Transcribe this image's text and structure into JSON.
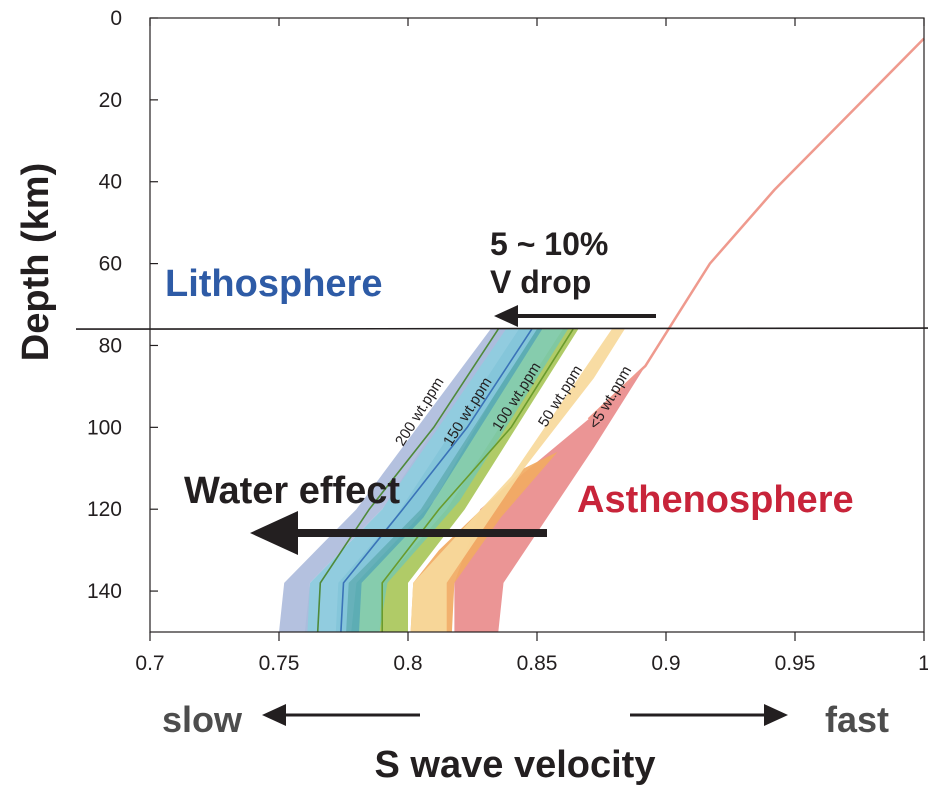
{
  "chart_data": {
    "type": "area",
    "xlabel": "S wave velocity",
    "ylabel": "Depth (km)",
    "xlim": [
      0.7,
      1.0
    ],
    "ylim": [
      0,
      150
    ],
    "y_inverted": true,
    "x_ticks": [
      0.7,
      0.75,
      0.8,
      0.85,
      0.9,
      0.95,
      1.0
    ],
    "x_tick_labels": [
      "0.7",
      "0.75",
      "0.8",
      "0.85",
      "0.9",
      "0.95",
      "1"
    ],
    "y_ticks": [
      0,
      20,
      40,
      60,
      80,
      100,
      120,
      140
    ],
    "y_tick_labels": [
      "0",
      "20",
      "40",
      "60",
      "80",
      "100",
      "120",
      "140"
    ],
    "grid": false,
    "lithosphere_boundary_depth": 76,
    "reference_curve": {
      "color": "#ef9a8e",
      "points": [
        [
          1.0,
          5
        ],
        [
          0.942,
          42
        ],
        [
          0.917,
          60
        ],
        [
          0.904,
          73
        ],
        [
          0.892,
          85
        ],
        [
          0.87,
          98
        ]
      ]
    },
    "bands": [
      {
        "label": "<5 wt.ppm",
        "color": "#e98c8c",
        "left": [
          [
            0.87,
            98
          ],
          [
            0.828,
            120
          ],
          [
            0.818,
            138
          ],
          [
            0.818,
            150
          ]
        ],
        "right": [
          [
            0.892,
            85
          ],
          [
            0.872,
            105
          ],
          [
            0.837,
            138
          ],
          [
            0.835,
            150
          ]
        ]
      },
      {
        "label": "50 wt.ppm",
        "color": "#f1aa62",
        "left": [
          [
            0.845,
            110
          ],
          [
            0.812,
            130
          ],
          [
            0.802,
            138
          ],
          [
            0.801,
            150
          ]
        ],
        "right": [
          [
            0.858,
            106
          ],
          [
            0.836,
            122
          ],
          [
            0.818,
            138
          ],
          [
            0.817,
            150
          ]
        ]
      },
      {
        "label": "",
        "color": "#f7d99b",
        "left": [
          [
            0.879,
            76
          ],
          [
            0.84,
            112
          ],
          [
            0.802,
            138
          ],
          [
            0.801,
            150
          ]
        ],
        "right": [
          [
            0.884,
            76
          ],
          [
            0.872,
            88
          ],
          [
            0.845,
            110
          ],
          [
            0.815,
            138
          ],
          [
            0.815,
            150
          ]
        ]
      },
      {
        "label": "100 wt.ppm",
        "color": "#a9c75a",
        "left": [
          [
            0.86,
            76
          ],
          [
            0.815,
            120
          ],
          [
            0.79,
            138
          ],
          [
            0.789,
            150
          ]
        ],
        "right": [
          [
            0.866,
            76
          ],
          [
            0.822,
            120
          ],
          [
            0.8,
            138
          ],
          [
            0.8,
            150
          ]
        ]
      },
      {
        "label": "",
        "color": "#7cc8a6",
        "left": [
          [
            0.848,
            76
          ],
          [
            0.81,
            118
          ],
          [
            0.78,
            138
          ],
          [
            0.778,
            150
          ]
        ],
        "right": [
          [
            0.862,
            76
          ],
          [
            0.82,
            118
          ],
          [
            0.792,
            138
          ],
          [
            0.789,
            150
          ]
        ]
      },
      {
        "label": "150 wt.ppm",
        "color": "#5aaab4",
        "left": [
          [
            0.843,
            76
          ],
          [
            0.795,
            122
          ],
          [
            0.773,
            138
          ],
          [
            0.772,
            150
          ]
        ],
        "right": [
          [
            0.852,
            76
          ],
          [
            0.806,
            122
          ],
          [
            0.782,
            138
          ],
          [
            0.781,
            150
          ]
        ]
      },
      {
        "label": "",
        "color": "#88c8dc",
        "left": [
          [
            0.835,
            76
          ],
          [
            0.79,
            120
          ],
          [
            0.762,
            138
          ],
          [
            0.76,
            150
          ]
        ],
        "right": [
          [
            0.85,
            76
          ],
          [
            0.805,
            120
          ],
          [
            0.777,
            138
          ],
          [
            0.776,
            150
          ]
        ]
      },
      {
        "label": "200 wt.ppm",
        "color": "#aebcdc",
        "left": [
          [
            0.832,
            76
          ],
          [
            0.78,
            120
          ],
          [
            0.752,
            138
          ],
          [
            0.75,
            150
          ]
        ],
        "right": [
          [
            0.838,
            76
          ],
          [
            0.79,
            120
          ],
          [
            0.762,
            138
          ],
          [
            0.761,
            150
          ]
        ]
      }
    ],
    "curve_lines": [
      {
        "label": "200 wt.ppm",
        "color": "#4f8a3a",
        "points": [
          [
            0.835,
            76
          ],
          [
            0.81,
            100
          ],
          [
            0.785,
            120
          ],
          [
            0.766,
            138
          ],
          [
            0.765,
            150
          ]
        ]
      },
      {
        "label": "150 wt.ppm",
        "color": "#3a73b8",
        "points": [
          [
            0.848,
            76
          ],
          [
            0.823,
            100
          ],
          [
            0.798,
            120
          ],
          [
            0.775,
            138
          ],
          [
            0.774,
            150
          ]
        ]
      },
      {
        "label": "100 wt.ppm",
        "color": "#6a9b2c",
        "points": [
          [
            0.864,
            76
          ],
          [
            0.84,
            100
          ],
          [
            0.812,
            120
          ],
          [
            0.79,
            138
          ],
          [
            0.79,
            150
          ]
        ]
      }
    ]
  },
  "annotations": {
    "lithosphere": "Lithosphere",
    "asthenosphere": "Asthenosphere",
    "v_drop_line1": "5 ~ 10%",
    "v_drop_line2": "V drop",
    "water_effect": "Water effect",
    "slow": "slow",
    "fast": "fast",
    "curve_labels": [
      "200 wt.ppm",
      "150 wt.ppm",
      "100 wt.ppm",
      "50 wt.ppm",
      "<5 wt.ppm"
    ]
  },
  "colors": {
    "lithosphere": "#2e5ba6",
    "asthenosphere": "#c8243a",
    "text": "#231f20",
    "muted_text": "#4d4d4d"
  }
}
